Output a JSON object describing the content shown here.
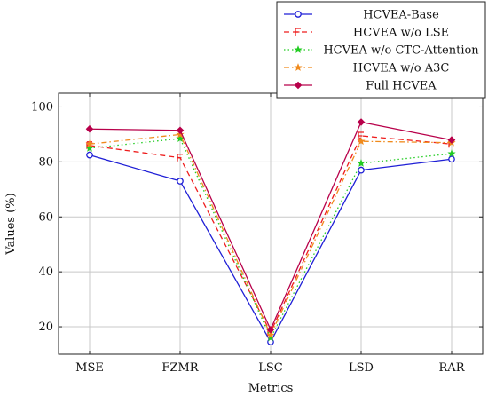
{
  "chart_data": {
    "type": "line",
    "title": "",
    "xlabel": "Metrics",
    "ylabel": "Values (%)",
    "categories": [
      "MSE",
      "FZMR",
      "LSC",
      "LSD",
      "RAR"
    ],
    "ylim": [
      10,
      105
    ],
    "yticks": [
      20,
      40,
      60,
      80,
      100
    ],
    "grid": true,
    "legend_position": "top-right",
    "series": [
      {
        "name": "HCVEA-Base",
        "values": [
          82.5,
          73.0,
          14.5,
          77.0,
          81.0
        ],
        "color": "#1f1fd6",
        "dash": "solid",
        "marker": "circle"
      },
      {
        "name": "HCVEA w/o LSE",
        "values": [
          86.0,
          81.5,
          18.0,
          89.5,
          86.5
        ],
        "color": "#ee1c1c",
        "dash": "dashed",
        "marker": "flag"
      },
      {
        "name": "HCVEA w/o CTC-Attention",
        "values": [
          85.0,
          88.5,
          16.0,
          79.5,
          83.0
        ],
        "color": "#22cc22",
        "dash": "dotted",
        "marker": "star"
      },
      {
        "name": "HCVEA w/o A3C",
        "values": [
          86.5,
          90.0,
          17.0,
          87.5,
          87.0
        ],
        "color": "#f08a1c",
        "dash": "dashdot",
        "marker": "star"
      },
      {
        "name": "Full HCVEA",
        "values": [
          92.0,
          91.5,
          19.0,
          94.5,
          88.0
        ],
        "color": "#b8004a",
        "dash": "solid",
        "marker": "diamond"
      }
    ]
  }
}
